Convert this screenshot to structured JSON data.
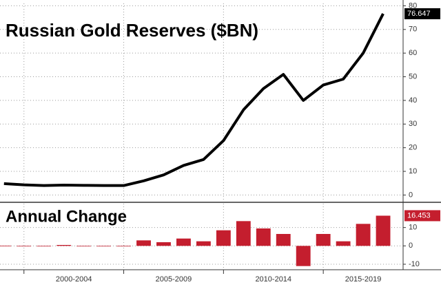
{
  "chart_data": [
    {
      "type": "line",
      "title": "Russian Gold Reserves ($BN)",
      "color": "#000000",
      "x": [
        1999,
        2000,
        2001,
        2002,
        2003,
        2004,
        2005,
        2006,
        2007,
        2008,
        2009,
        2010,
        2011,
        2012,
        2013,
        2014,
        2015,
        2016,
        2017,
        2018
      ],
      "values": [
        4.8,
        4.3,
        4,
        4.2,
        4.1,
        4,
        4,
        6,
        8.5,
        12.5,
        15,
        23,
        36,
        45,
        51,
        40,
        46.5,
        49,
        60,
        76.647
      ],
      "xlim": [
        1998.8,
        2019
      ],
      "xgrid": [
        2000,
        2005,
        2010,
        2015
      ],
      "ylim": [
        -2.5,
        81
      ],
      "yticks": [
        0,
        10,
        20,
        30,
        40,
        50,
        60,
        70,
        80
      ],
      "grid": true
    },
    {
      "type": "bar",
      "title": "Annual Change",
      "color": "#c41e2e",
      "x": [
        1999,
        2000,
        2001,
        2002,
        2003,
        2004,
        2005,
        2006,
        2007,
        2008,
        2009,
        2010,
        2011,
        2012,
        2013,
        2014,
        2015,
        2016,
        2017,
        2018
      ],
      "values": [
        0.1,
        -0.2,
        -0.1,
        0.5,
        -0.1,
        0,
        -0.1,
        3,
        2,
        4,
        2.5,
        8.5,
        13.5,
        9.5,
        6.5,
        -11,
        6.5,
        2.5,
        12,
        16.453
      ],
      "xlim": [
        1998.8,
        2019
      ],
      "xgrid": [
        2000,
        2005,
        2010,
        2015
      ],
      "xticks": [
        {
          "value": 2002.5,
          "label": "2000-2004"
        },
        {
          "value": 2007.5,
          "label": "2005-2009"
        },
        {
          "value": 2012.5,
          "label": "2010-2014"
        },
        {
          "value": 2017,
          "label": "2015-2019"
        }
      ],
      "ylim": [
        -13,
        23
      ],
      "yticks": [
        -10,
        0,
        10
      ],
      "grid": true
    }
  ]
}
